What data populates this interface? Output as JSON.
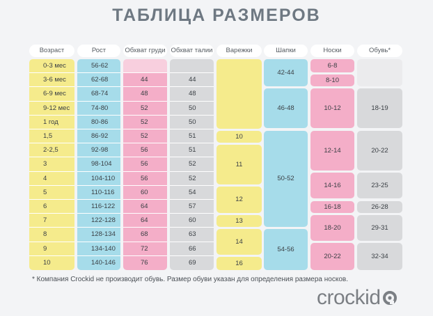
{
  "title": "ТАБЛИЦА РАЗМЕРОВ",
  "colors": {
    "yellow": "#f5eb8c",
    "blue": "#a6dcea",
    "pink": "#f4aec8",
    "light_pink": "#f8cfde",
    "gray": "#d8d9db",
    "header_bg": "#ffffff",
    "title": "#6e7882",
    "logo": "#7b7f84"
  },
  "headers": [
    "Возраст",
    "Рост",
    "Обхват груди",
    "Обхват талии",
    "Варежки",
    "Шапки",
    "Носки",
    "Обувь*"
  ],
  "rows": [
    {
      "age": "0-3 мес",
      "height": "56-62",
      "chest": "",
      "waist": ""
    },
    {
      "age": "3-6 мес",
      "height": "62-68",
      "chest": "44",
      "waist": "44"
    },
    {
      "age": "6-9 мес",
      "height": "68-74",
      "chest": "48",
      "waist": "48"
    },
    {
      "age": "9-12 мес",
      "height": "74-80",
      "chest": "52",
      "waist": "50"
    },
    {
      "age": "1 год",
      "height": "80-86",
      "chest": "52",
      "waist": "50"
    },
    {
      "age": "1,5",
      "height": "86-92",
      "chest": "52",
      "waist": "51"
    },
    {
      "age": "2-2,5",
      "height": "92-98",
      "chest": "56",
      "waist": "51"
    },
    {
      "age": "3",
      "height": "98-104",
      "chest": "56",
      "waist": "52"
    },
    {
      "age": "4",
      "height": "104-110",
      "chest": "56",
      "waist": "52"
    },
    {
      "age": "5",
      "height": "110-116",
      "chest": "60",
      "waist": "54"
    },
    {
      "age": "6",
      "height": "116-122",
      "chest": "64",
      "waist": "57"
    },
    {
      "age": "7",
      "height": "122-128",
      "chest": "64",
      "waist": "60"
    },
    {
      "age": "8",
      "height": "128-134",
      "chest": "68",
      "waist": "63"
    },
    {
      "age": "9",
      "height": "134-140",
      "chest": "72",
      "waist": "66"
    },
    {
      "age": "10",
      "height": "140-146",
      "chest": "76",
      "waist": "69"
    }
  ],
  "mittens": [
    {
      "value": "",
      "rows": [
        0,
        4
      ]
    },
    {
      "value": "10",
      "rows": [
        5,
        5
      ]
    },
    {
      "value": "11",
      "rows": [
        6,
        8
      ]
    },
    {
      "value": "12",
      "rows": [
        9,
        10
      ]
    },
    {
      "value": "13",
      "rows": [
        11,
        11
      ]
    },
    {
      "value": "14",
      "rows": [
        12,
        13
      ]
    },
    {
      "value": "16",
      "rows": [
        14,
        14
      ]
    }
  ],
  "hats": [
    {
      "value": "42-44",
      "rows": [
        0,
        1
      ]
    },
    {
      "value": "46-48",
      "rows": [
        2,
        4
      ]
    },
    {
      "value": "50-52",
      "rows": [
        5,
        11
      ]
    },
    {
      "value": "54-56",
      "rows": [
        12,
        14
      ]
    }
  ],
  "socks": [
    {
      "value": "6-8",
      "rows": [
        0,
        0
      ]
    },
    {
      "value": "8-10",
      "rows": [
        1,
        1
      ]
    },
    {
      "value": "10-12",
      "rows": [
        2,
        4
      ]
    },
    {
      "value": "12-14",
      "rows": [
        5,
        7
      ]
    },
    {
      "value": "14-16",
      "rows": [
        8,
        9
      ]
    },
    {
      "value": "16-18",
      "rows": [
        10,
        10
      ]
    },
    {
      "value": "18-20",
      "rows": [
        11,
        12
      ]
    },
    {
      "value": "20-22",
      "rows": [
        13,
        14
      ]
    }
  ],
  "shoes": [
    {
      "value": "",
      "rows": [
        0,
        1
      ]
    },
    {
      "value": "18-19",
      "rows": [
        2,
        4
      ]
    },
    {
      "value": "20-22",
      "rows": [
        5,
        7
      ]
    },
    {
      "value": "23-25",
      "rows": [
        8,
        9
      ]
    },
    {
      "value": "26-28",
      "rows": [
        10,
        10
      ]
    },
    {
      "value": "29-31",
      "rows": [
        11,
        12
      ]
    },
    {
      "value": "32-34",
      "rows": [
        13,
        14
      ]
    }
  ],
  "footnote": "* Компания Crockid не производит обувь. Размер обуви указан для определения размера носков.",
  "logo_text": "crockid"
}
